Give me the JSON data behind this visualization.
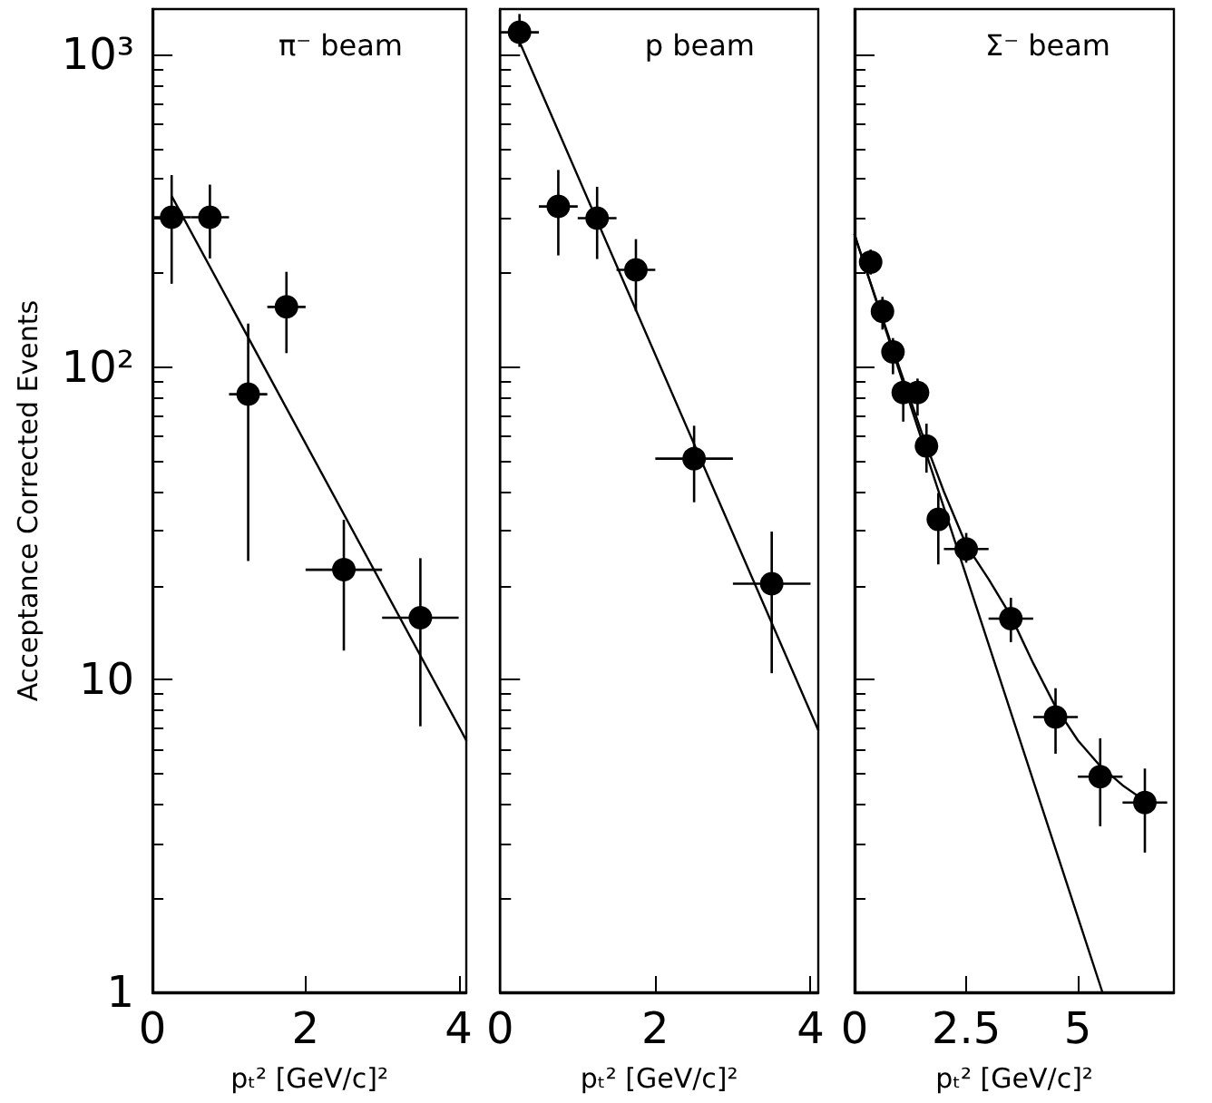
{
  "chart_data": [
    {
      "type": "scatter",
      "title": "π⁻ beam",
      "xlabel": "pₜ² [GeV/c]²",
      "ylabel": "Acceptance Corrected Events",
      "log": "y",
      "grid": false,
      "xlim": [
        0,
        4.1
      ],
      "xticks": [
        0,
        2,
        4
      ],
      "ylim": [
        1,
        1400
      ],
      "yticks": [
        1,
        10,
        {
          "value": 100,
          "label": "10²"
        },
        {
          "value": 1000,
          "label": "10³"
        }
      ],
      "series": [
        {
          "color": "#000000",
          "marker": "circle",
          "x": [
            0.25,
            0.75,
            1.25,
            1.75,
            2.5,
            3.5
          ],
          "values": [
            302,
            302,
            82,
            156,
            22.5,
            15.8
          ],
          "errors": [
            [
              185,
              412
            ],
            [
              223,
              384
            ],
            [
              24,
              138
            ],
            [
              111,
              202
            ],
            [
              12.4,
              32.5
            ],
            [
              7.1,
              24.5
            ]
          ],
          "xerrors": [
            0.25,
            0.25,
            0.25,
            0.25,
            0.5,
            0.5
          ]
        },
        {
          "type": "line",
          "color": "#000000",
          "marker": "none",
          "x": [
            0.25,
            4.1
          ],
          "values": [
            353,
            6.4
          ]
        }
      ]
    },
    {
      "type": "scatter",
      "title": "p beam",
      "xlabel": "pₜ² [GeV/c]²",
      "log": "y",
      "grid": false,
      "tick_labels": "x",
      "xlim": [
        0,
        4.1
      ],
      "xticks": [
        0,
        2,
        4
      ],
      "ylim": [
        1,
        1400
      ],
      "yticks": [
        1,
        10,
        100,
        1000
      ],
      "series": [
        {
          "color": "#000000",
          "marker": "circle",
          "x": [
            0.25,
            0.75,
            1.25,
            1.75,
            2.5,
            3.5
          ],
          "values": [
            1180,
            327,
            300,
            205,
            51,
            20.3
          ],
          "errors": [
            [
              1060,
              1350
            ],
            [
              228,
              428
            ],
            [
              222,
              378
            ],
            [
              151,
              257
            ],
            [
              37,
              65
            ],
            [
              10.5,
              29.8
            ]
          ],
          "xerrors": [
            0.25,
            0.25,
            0.25,
            0.25,
            0.5,
            0.5
          ]
        },
        {
          "type": "line",
          "color": "#000000",
          "marker": "none",
          "x": [
            0.25,
            4.1
          ],
          "values": [
            1100,
            6.9
          ]
        }
      ]
    },
    {
      "type": "scatter",
      "title": "Σ⁻ beam",
      "xlabel": "pₜ² [GeV/c]²",
      "log": "y",
      "grid": false,
      "tick_labels": "x",
      "xlim": [
        0,
        7.15
      ],
      "xticks": [
        0,
        2.5,
        5
      ],
      "ylim": [
        1,
        1400
      ],
      "yticks": [
        1,
        10,
        100,
        1000
      ],
      "series": [
        {
          "color": "#000000",
          "marker": "circle",
          "x": [
            0.36,
            0.625,
            0.86,
            1.09,
            1.41,
            1.61,
            1.875,
            2.5,
            3.5,
            4.5,
            5.5,
            6.5
          ],
          "values": [
            217,
            151,
            112,
            83,
            83,
            56,
            32.6,
            26.2,
            15.7,
            7.6,
            4.9,
            4.05
          ],
          "errors": [
            [
              198,
              238
            ],
            [
              132,
              168
            ],
            [
              95,
              124
            ],
            [
              67,
              92
            ],
            [
              70,
              92
            ],
            [
              46,
              66
            ],
            [
              23.4,
              39.6
            ],
            [
              23.7,
              29.5
            ],
            [
              13.2,
              18.3
            ],
            [
              5.8,
              9.4
            ],
            [
              3.4,
              6.5
            ],
            [
              2.8,
              5.2
            ]
          ],
          "xerrors": [
            null,
            null,
            null,
            null,
            null,
            null,
            null,
            0.5,
            0.5,
            0.5,
            0.5,
            0.5
          ]
        },
        {
          "type": "line",
          "color": "#000000",
          "marker": "none",
          "x": [
            0,
            5.55
          ],
          "values": [
            266,
            1
          ]
        },
        {
          "type": "line",
          "color": "#000000",
          "marker": "none",
          "x": [
            0,
            0.1,
            0.5,
            1.0,
            1.5,
            2.0,
            2.5,
            3.0,
            3.5,
            4.0,
            4.5,
            5.0,
            5.5,
            6.0,
            6.5
          ],
          "values": [
            266,
            240,
            162,
            100,
            62,
            40,
            27,
            21,
            16,
            11.3,
            8.2,
            6.4,
            5.3,
            4.6,
            4.1
          ]
        }
      ]
    }
  ]
}
